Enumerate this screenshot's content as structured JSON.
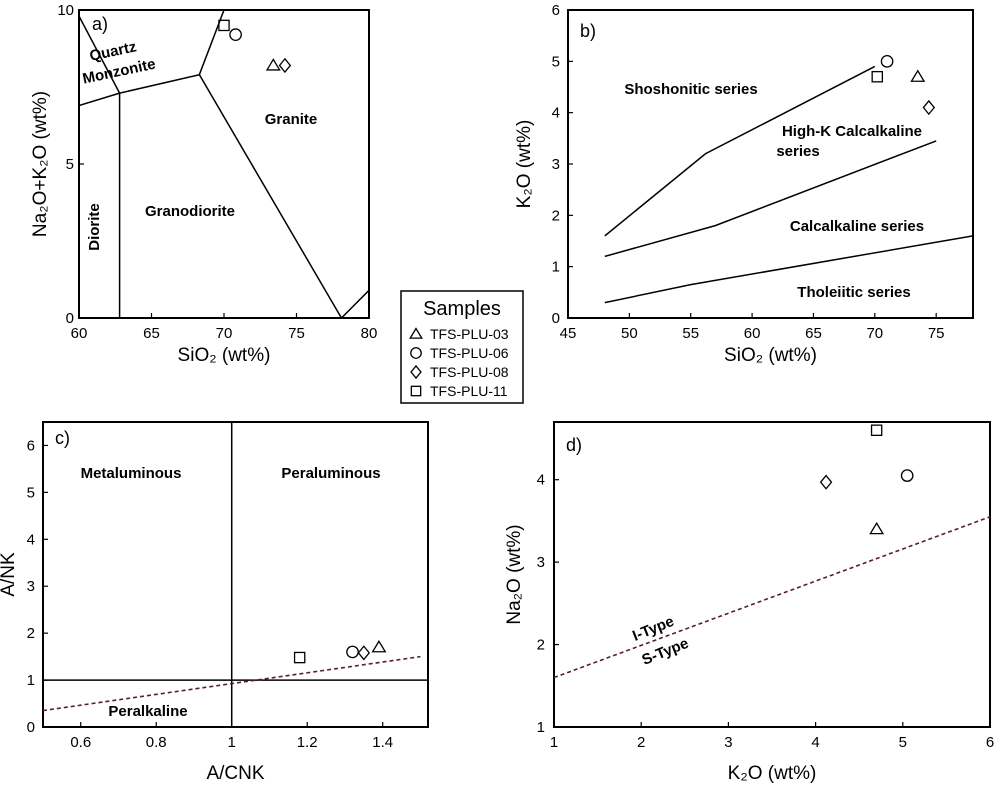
{
  "chart_data": [
    {
      "panel": "a)",
      "type": "scatter",
      "xlabel": "SiO₂ (wt%)",
      "ylabel": "Na₂O+K₂O (wt%)",
      "xlim": [
        60,
        80
      ],
      "ylim": [
        0,
        10
      ],
      "xticks": [
        60,
        65,
        70,
        75,
        80
      ],
      "yticks": [
        0,
        5,
        10
      ],
      "regions": [
        "Quartz",
        "Monzonite",
        "Granite",
        "Diorite",
        "Granodiorite"
      ],
      "boundaries": [
        [
          [
            60,
            6.9
          ],
          [
            62.8,
            7.3
          ],
          [
            68.3,
            7.9
          ],
          [
            70,
            10
          ]
        ],
        [
          [
            60,
            9.8
          ],
          [
            62.8,
            7.3
          ]
        ],
        [
          [
            62.8,
            7.3
          ],
          [
            62.8,
            0
          ]
        ],
        [
          [
            68.3,
            7.9
          ],
          [
            78.1,
            0
          ]
        ],
        [
          [
            78.1,
            0
          ],
          [
            80,
            0.9
          ]
        ]
      ],
      "series": [
        {
          "name": "TFS-PLU-03",
          "marker": "triangle",
          "points": [
            [
              73.4,
              8.2
            ]
          ]
        },
        {
          "name": "TFS-PLU-06",
          "marker": "circle",
          "points": [
            [
              70.8,
              9.2
            ]
          ]
        },
        {
          "name": "TFS-PLU-08",
          "marker": "diamond",
          "points": [
            [
              74.2,
              8.2
            ]
          ]
        },
        {
          "name": "TFS-PLU-11",
          "marker": "square",
          "points": [
            [
              70.0,
              9.5
            ]
          ]
        }
      ]
    },
    {
      "panel": "b)",
      "type": "scatter",
      "xlabel": "SiO₂ (wt%)",
      "ylabel": "K₂O (wt%)",
      "xlim": [
        45,
        78
      ],
      "ylim": [
        0,
        6
      ],
      "xticks": [
        45,
        50,
        55,
        60,
        65,
        70,
        75
      ],
      "yticks": [
        0,
        1,
        2,
        3,
        4,
        5,
        6
      ],
      "regions": [
        "Shoshonitic series",
        "High-K Calcalkaline",
        "series",
        "Calcalkaline series",
        "Tholeiitic series"
      ],
      "boundaries": [
        [
          [
            48,
            1.6
          ],
          [
            56.2,
            3.2
          ],
          [
            70,
            4.9
          ]
        ],
        [
          [
            48,
            1.2
          ],
          [
            57,
            1.8
          ],
          [
            75,
            3.45
          ]
        ],
        [
          [
            48,
            0.3
          ],
          [
            55,
            0.65
          ],
          [
            78,
            1.6
          ]
        ]
      ],
      "series": [
        {
          "name": "TFS-PLU-03",
          "marker": "triangle",
          "points": [
            [
              73.5,
              4.7
            ]
          ]
        },
        {
          "name": "TFS-PLU-06",
          "marker": "circle",
          "points": [
            [
              71.0,
              5.0
            ]
          ]
        },
        {
          "name": "TFS-PLU-08",
          "marker": "diamond",
          "points": [
            [
              74.4,
              4.1
            ]
          ]
        },
        {
          "name": "TFS-PLU-11",
          "marker": "square",
          "points": [
            [
              70.2,
              4.7
            ]
          ]
        }
      ]
    },
    {
      "panel": "c)",
      "type": "scatter",
      "xlabel": "A/CNK",
      "ylabel": "A/NK",
      "xlim": [
        0.5,
        1.52
      ],
      "ylim": [
        0,
        6.5
      ],
      "xticks": [
        "0.6",
        "0.8",
        "1",
        "1.2",
        "1.4"
      ],
      "xtick_values": [
        0.6,
        0.8,
        1.0,
        1.2,
        1.4
      ],
      "yticks": [
        0,
        1,
        2,
        3,
        4,
        5,
        6
      ],
      "regions": [
        "Metaluminous",
        "Peraluminous",
        "Peralkaline"
      ],
      "boundaries": [
        [
          [
            1.0,
            0
          ],
          [
            1.0,
            6.5
          ]
        ],
        [
          [
            0.5,
            1.0
          ],
          [
            1.52,
            1.0
          ]
        ]
      ],
      "dashed_lines": [
        [
          [
            0.5,
            0.35
          ],
          [
            1.5,
            1.5
          ]
        ]
      ],
      "series": [
        {
          "name": "TFS-PLU-03",
          "marker": "triangle",
          "points": [
            [
              1.39,
              1.7
            ]
          ]
        },
        {
          "name": "TFS-PLU-06",
          "marker": "circle",
          "points": [
            [
              1.32,
              1.6
            ]
          ]
        },
        {
          "name": "TFS-PLU-08",
          "marker": "diamond",
          "points": [
            [
              1.35,
              1.58
            ]
          ]
        },
        {
          "name": "TFS-PLU-11",
          "marker": "square",
          "points": [
            [
              1.18,
              1.48
            ]
          ]
        }
      ]
    },
    {
      "panel": "d)",
      "type": "scatter",
      "xlabel": "K₂O (wt%)",
      "ylabel": "Na₂O (wt%)",
      "xlim": [
        1,
        6
      ],
      "ylim": [
        1,
        4.7
      ],
      "xticks": [
        1,
        2,
        3,
        4,
        5,
        6
      ],
      "yticks": [
        1,
        2,
        3,
        4
      ],
      "regions": [
        "I-Type",
        "S-Type"
      ],
      "dashed_lines": [
        [
          [
            1,
            1.6
          ],
          [
            6,
            3.55
          ]
        ]
      ],
      "series": [
        {
          "name": "TFS-PLU-03",
          "marker": "triangle",
          "points": [
            [
              4.7,
              3.4
            ]
          ]
        },
        {
          "name": "TFS-PLU-06",
          "marker": "circle",
          "points": [
            [
              5.05,
              4.05
            ]
          ]
        },
        {
          "name": "TFS-PLU-08",
          "marker": "diamond",
          "points": [
            [
              4.12,
              3.97
            ]
          ]
        },
        {
          "name": "TFS-PLU-11",
          "marker": "square",
          "points": [
            [
              4.7,
              4.6
            ]
          ]
        }
      ]
    }
  ],
  "legend": {
    "title": "Samples",
    "items": [
      {
        "label": "TFS-PLU-03",
        "marker": "triangle"
      },
      {
        "label": "TFS-PLU-06",
        "marker": "circle"
      },
      {
        "label": "TFS-PLU-08",
        "marker": "diamond"
      },
      {
        "label": "TFS-PLU-11",
        "marker": "square"
      }
    ]
  },
  "colors": {
    "ink": "#000000",
    "dashed": "#5a2020"
  }
}
